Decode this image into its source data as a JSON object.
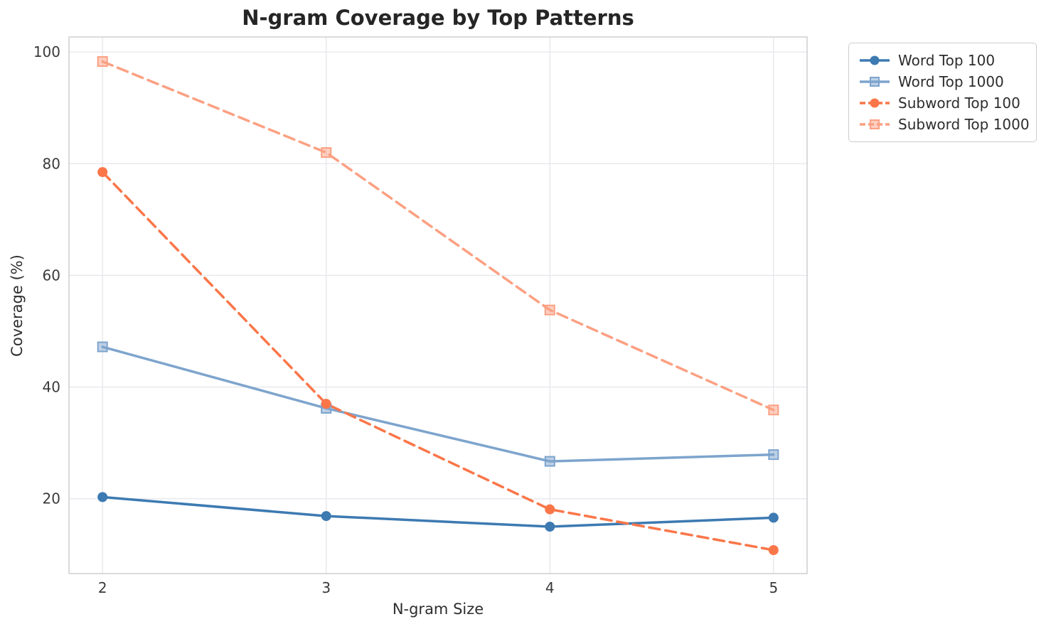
{
  "chart_data": {
    "type": "line",
    "title": "N-gram Coverage by Top Patterns",
    "xlabel": "N-gram Size",
    "ylabel": "Coverage (%)",
    "categories": [
      2,
      3,
      4,
      5
    ],
    "x_tick_labels": [
      "2",
      "3",
      "4",
      "5"
    ],
    "y_tick_labels": [
      "20",
      "40",
      "60",
      "80",
      "100"
    ],
    "y_ticks": [
      20,
      40,
      60,
      80,
      100
    ],
    "xlim": [
      1.85,
      5.15
    ],
    "ylim": [
      6.6,
      102.7
    ],
    "grid": true,
    "legend_position": "outside-top-right",
    "series": [
      {
        "name": "Word Top 100",
        "color": "#3d7ab2",
        "marker": "circle",
        "line_style": "solid",
        "values": [
          20.3,
          16.9,
          15.0,
          16.6
        ]
      },
      {
        "name": "Word Top 1000",
        "color": "#7da4cd",
        "marker": "square",
        "line_style": "solid",
        "values": [
          47.2,
          36.2,
          26.7,
          27.9
        ]
      },
      {
        "name": "Subword Top 100",
        "color": "#fa7649",
        "marker": "circle",
        "line_style": "dashed",
        "values": [
          78.5,
          37.0,
          18.1,
          10.8
        ]
      },
      {
        "name": "Subword Top 1000",
        "color": "#fca082",
        "marker": "square",
        "line_style": "dashed",
        "values": [
          98.3,
          82.0,
          53.8,
          35.9
        ]
      }
    ]
  },
  "colors": {
    "gridline": "#e8e8ed",
    "spine": "#cfcfd4",
    "tick_label": "#3a3a3a"
  }
}
